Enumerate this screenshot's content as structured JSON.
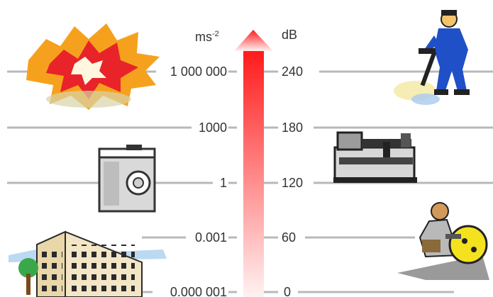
{
  "units": {
    "left": "ms",
    "left_exponent": "-2",
    "right": "dB"
  },
  "levels": [
    {
      "accel": "1 000 000",
      "db": "240"
    },
    {
      "accel": "1000",
      "db": "180"
    },
    {
      "accel": "1",
      "db": "120"
    },
    {
      "accel": "0.001",
      "db": "60"
    },
    {
      "accel": "0.000 001",
      "db": "0"
    }
  ],
  "icons": {
    "top_left": "explosion-icon",
    "mid_left": "washing-machine-icon",
    "bottom_left": "apartment-building-icon",
    "top_right": "jackhammer-worker-icon",
    "mid_right": "lathe-machine-icon",
    "bottom_right": "worker-with-grinder-icon"
  },
  "colors": {
    "line": "#b8b8b8",
    "arrow_top": "#ff1a1a",
    "arrow_bottom": "#fff2f2",
    "explosion_red": "#e8232a",
    "explosion_orange": "#f6a11e",
    "worker_blue": "#1f50c8",
    "sparkle_yellow": "#f4e21e"
  }
}
